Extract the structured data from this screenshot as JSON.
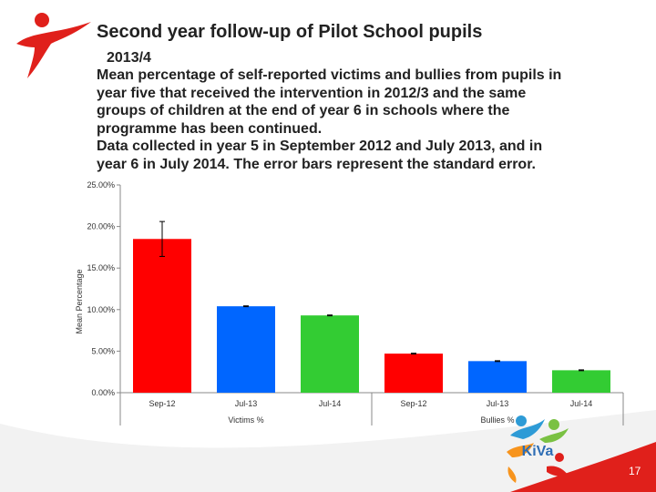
{
  "slide": {
    "title": "Second year follow-up of Pilot School pupils",
    "subtitle": "2013/4",
    "description_lines": [
      "Mean percentage of self-reported victims and bullies from pupils in",
      "year five that received the intervention in 2012/3 and the same",
      "groups of children at the end of year 6 in schools where the",
      "programme has been continued.",
      "Data collected in year 5 in September 2012 and July 2013, and in",
      "year 6 in July 2014. The error bars represent the standard error."
    ],
    "page_number": "17",
    "logo_text": "KiVa"
  },
  "chart_data": {
    "type": "bar",
    "ylabel": "Mean Percentage",
    "ylim": [
      0,
      25
    ],
    "yticks": [
      "0.00%",
      "5.00%",
      "10.00%",
      "15.00%",
      "20.00%",
      "25.00%"
    ],
    "ytick_values": [
      0,
      5,
      10,
      15,
      20,
      25
    ],
    "categories": [
      "Sep-12",
      "Jul-13",
      "Jul-14",
      "Sep-12",
      "Jul-13",
      "Jul-14"
    ],
    "groups": [
      "Victims %",
      "Bullies %"
    ],
    "values": [
      18.5,
      10.4,
      9.3,
      4.7,
      3.8,
      2.7
    ],
    "errors": [
      2.1,
      0.05,
      0.05,
      0.05,
      0.05,
      0.05
    ],
    "colors": [
      "#ff0000",
      "#0066ff",
      "#33cc33",
      "#ff0000",
      "#0066ff",
      "#33cc33"
    ],
    "grid": false,
    "legend": false
  }
}
